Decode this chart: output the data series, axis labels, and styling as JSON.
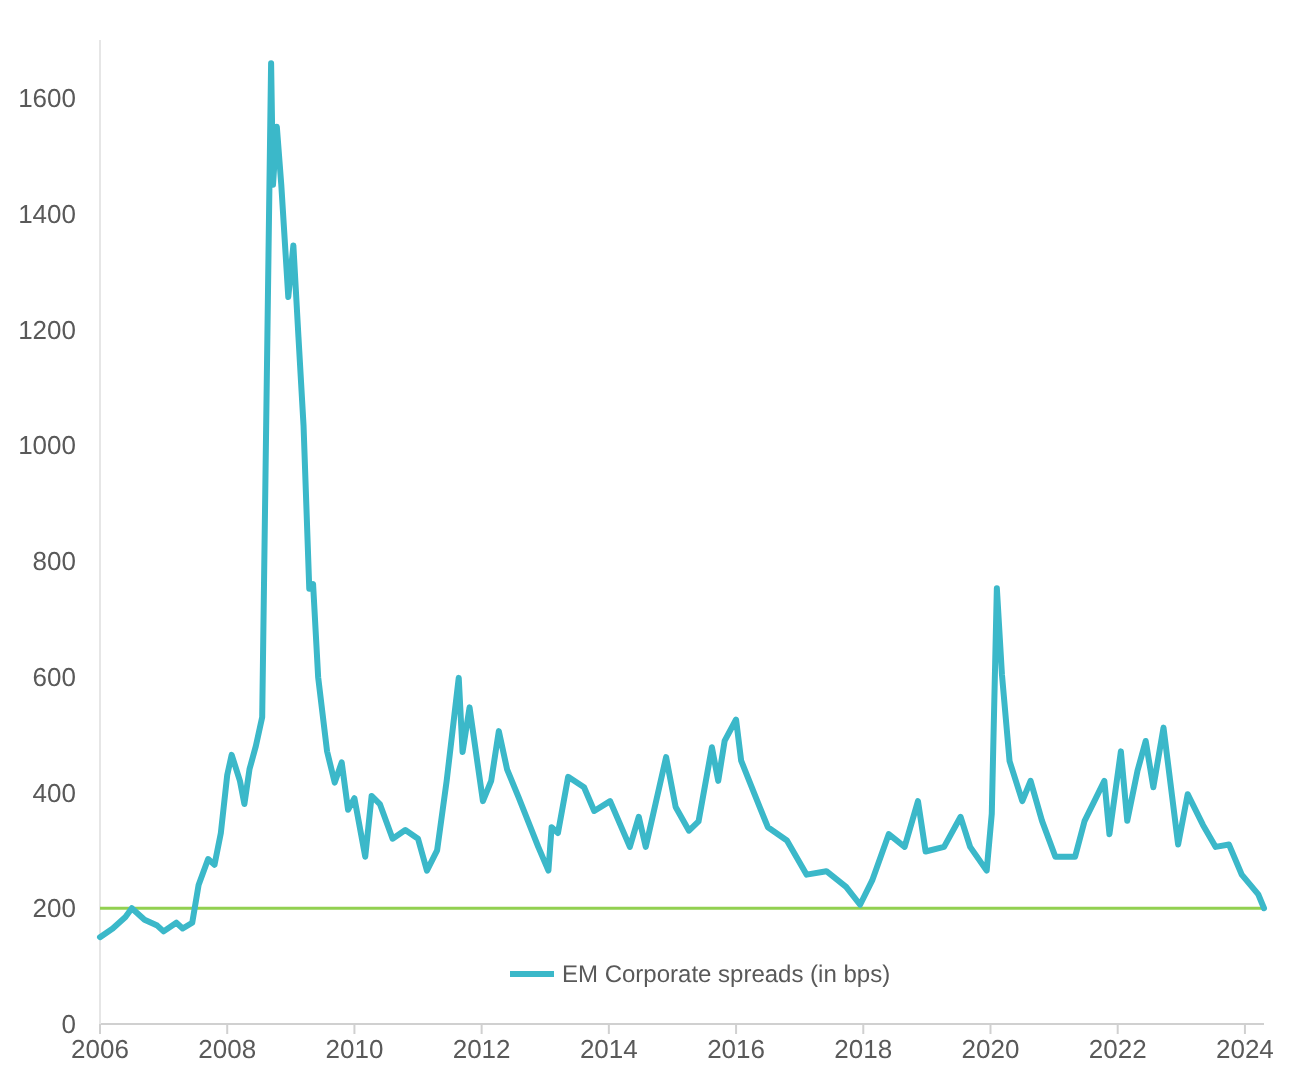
{
  "chart_data": {
    "type": "line",
    "legend": "bottom",
    "grid": false,
    "xlim": [
      2006,
      2024.3
    ],
    "xticks": [
      2006,
      2008,
      2010,
      2012,
      2014,
      2016,
      2018,
      2020,
      2022,
      2024
    ],
    "ylim": [
      0,
      1700
    ],
    "yticks": [
      0,
      200,
      400,
      600,
      800,
      1000,
      1200,
      1400,
      1600
    ],
    "ref_lines": [
      {
        "axis": "y",
        "value": 200,
        "color": "#92d050"
      }
    ],
    "series": [
      {
        "name": "EM Corporate spreads (in bps)",
        "color": "#3bb8c9",
        "x": [
          2006.0,
          2006.2,
          2006.4,
          2006.5,
          2006.7,
          2006.9,
          2007.0,
          2007.2,
          2007.3,
          2007.45,
          2007.55,
          2007.7,
          2007.8,
          2007.9,
          2008.0,
          2008.07,
          2008.2,
          2008.27,
          2008.35,
          2008.45,
          2008.55,
          2008.69,
          2008.72,
          2008.78,
          2008.85,
          2008.96,
          2009.04,
          2009.12,
          2009.2,
          2009.29,
          2009.35,
          2009.43,
          2009.57,
          2009.69,
          2009.8,
          2009.9,
          2010.0,
          2010.17,
          2010.27,
          2010.4,
          2010.6,
          2010.8,
          2011.0,
          2011.14,
          2011.3,
          2011.45,
          2011.64,
          2011.7,
          2011.81,
          2012.02,
          2012.15,
          2012.27,
          2012.4,
          2012.58,
          2012.89,
          2013.05,
          2013.1,
          2013.2,
          2013.36,
          2013.61,
          2013.77,
          2014.02,
          2014.33,
          2014.47,
          2014.58,
          2014.9,
          2015.05,
          2015.26,
          2015.41,
          2015.62,
          2015.72,
          2015.82,
          2016.0,
          2016.08,
          2016.29,
          2016.5,
          2016.8,
          2017.11,
          2017.42,
          2017.73,
          2017.95,
          2018.14,
          2018.4,
          2018.65,
          2018.86,
          2018.98,
          2019.27,
          2019.53,
          2019.68,
          2019.94,
          2020.02,
          2020.1,
          2020.18,
          2020.3,
          2020.5,
          2020.63,
          2020.81,
          2021.02,
          2021.33,
          2021.48,
          2021.79,
          2021.87,
          2022.05,
          2022.15,
          2022.31,
          2022.44,
          2022.56,
          2022.72,
          2022.95,
          2023.1,
          2023.34,
          2023.54,
          2023.75,
          2023.95,
          2024.21,
          2024.3
        ],
        "values": [
          150,
          165,
          185,
          200,
          180,
          170,
          160,
          175,
          165,
          175,
          240,
          285,
          275,
          330,
          430,
          465,
          420,
          380,
          440,
          480,
          530,
          1660,
          1450,
          1550,
          1450,
          1256,
          1345,
          1187,
          1034,
          752,
          760,
          599,
          471,
          417,
          452,
          370,
          390,
          289,
          394,
          380,
          320,
          335,
          320,
          265,
          300,
          420,
          598,
          470,
          547,
          385,
          420,
          506,
          440,
          392,
          306,
          265,
          340,
          330,
          427,
          409,
          368,
          385,
          306,
          358,
          306,
          461,
          375,
          334,
          350,
          478,
          420,
          489,
          526,
          455,
          397,
          340,
          317,
          258,
          264,
          237,
          206,
          248,
          328,
          306,
          385,
          298,
          306,
          358,
          306,
          265,
          363,
          753,
          604,
          454,
          385,
          420,
          351,
          289,
          289,
          351,
          420,
          328,
          471,
          351,
          437,
          489,
          409,
          512,
          310,
          397,
          344,
          306,
          310,
          258,
          224,
          200
        ]
      }
    ]
  }
}
